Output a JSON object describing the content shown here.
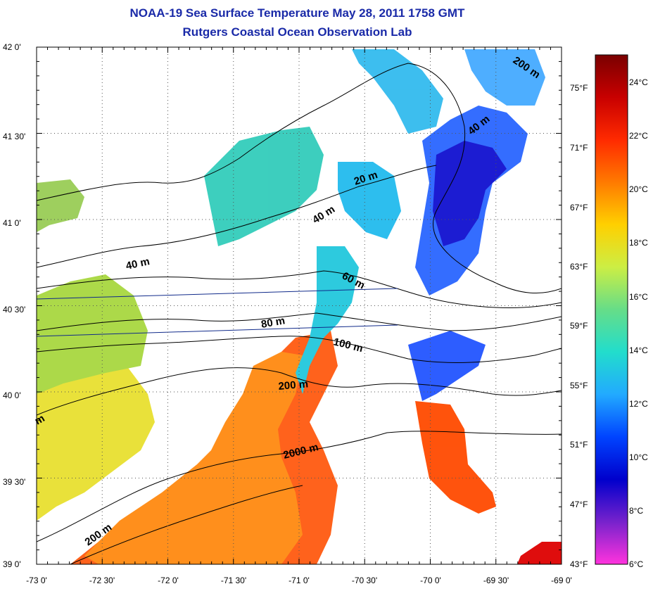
{
  "title": "NOAA-19 Sea Surface Temperature May 28, 2011 1758 GMT",
  "subtitle": "Rutgers Coastal Ocean Observation Lab",
  "lon_ticks": [
    "-73 0'",
    "-72 30'",
    "-72 0'",
    "-71 30'",
    "-71 0'",
    "-70 30'",
    "-70 0'",
    "-69 30'",
    "-69 0'"
  ],
  "lat_ticks": [
    "42 0'",
    "41 30'",
    "41 0'",
    "40 30'",
    "40 0'",
    "39 30'",
    "39 0'"
  ],
  "fahrenheit_ticks": [
    "75°F",
    "71°F",
    "67°F",
    "63°F",
    "59°F",
    "55°F",
    "51°F",
    "47°F",
    "43°F"
  ],
  "celsius_ticks": [
    "24°C",
    "22°C",
    "20°C",
    "18°C",
    "16°C",
    "14°C",
    "12°C",
    "10°C",
    "8°C",
    "6°C"
  ],
  "colorbar_colors": [
    "#7a0000",
    "#c80000",
    "#ff2a00",
    "#ff7a00",
    "#ffd000",
    "#ccee44",
    "#66dd88",
    "#22ddcc",
    "#22aaff",
    "#0044ff",
    "#0000cc",
    "#7722cc",
    "#ff33dd"
  ],
  "colorbar_range_c": [
    6,
    25
  ],
  "contour_labels": [
    "20 m",
    "40 m",
    "40 m",
    "40 m",
    "60 m",
    "80 m",
    "100 m",
    "200 m",
    "200 m",
    "200 m",
    "2000 m",
    "m"
  ]
}
